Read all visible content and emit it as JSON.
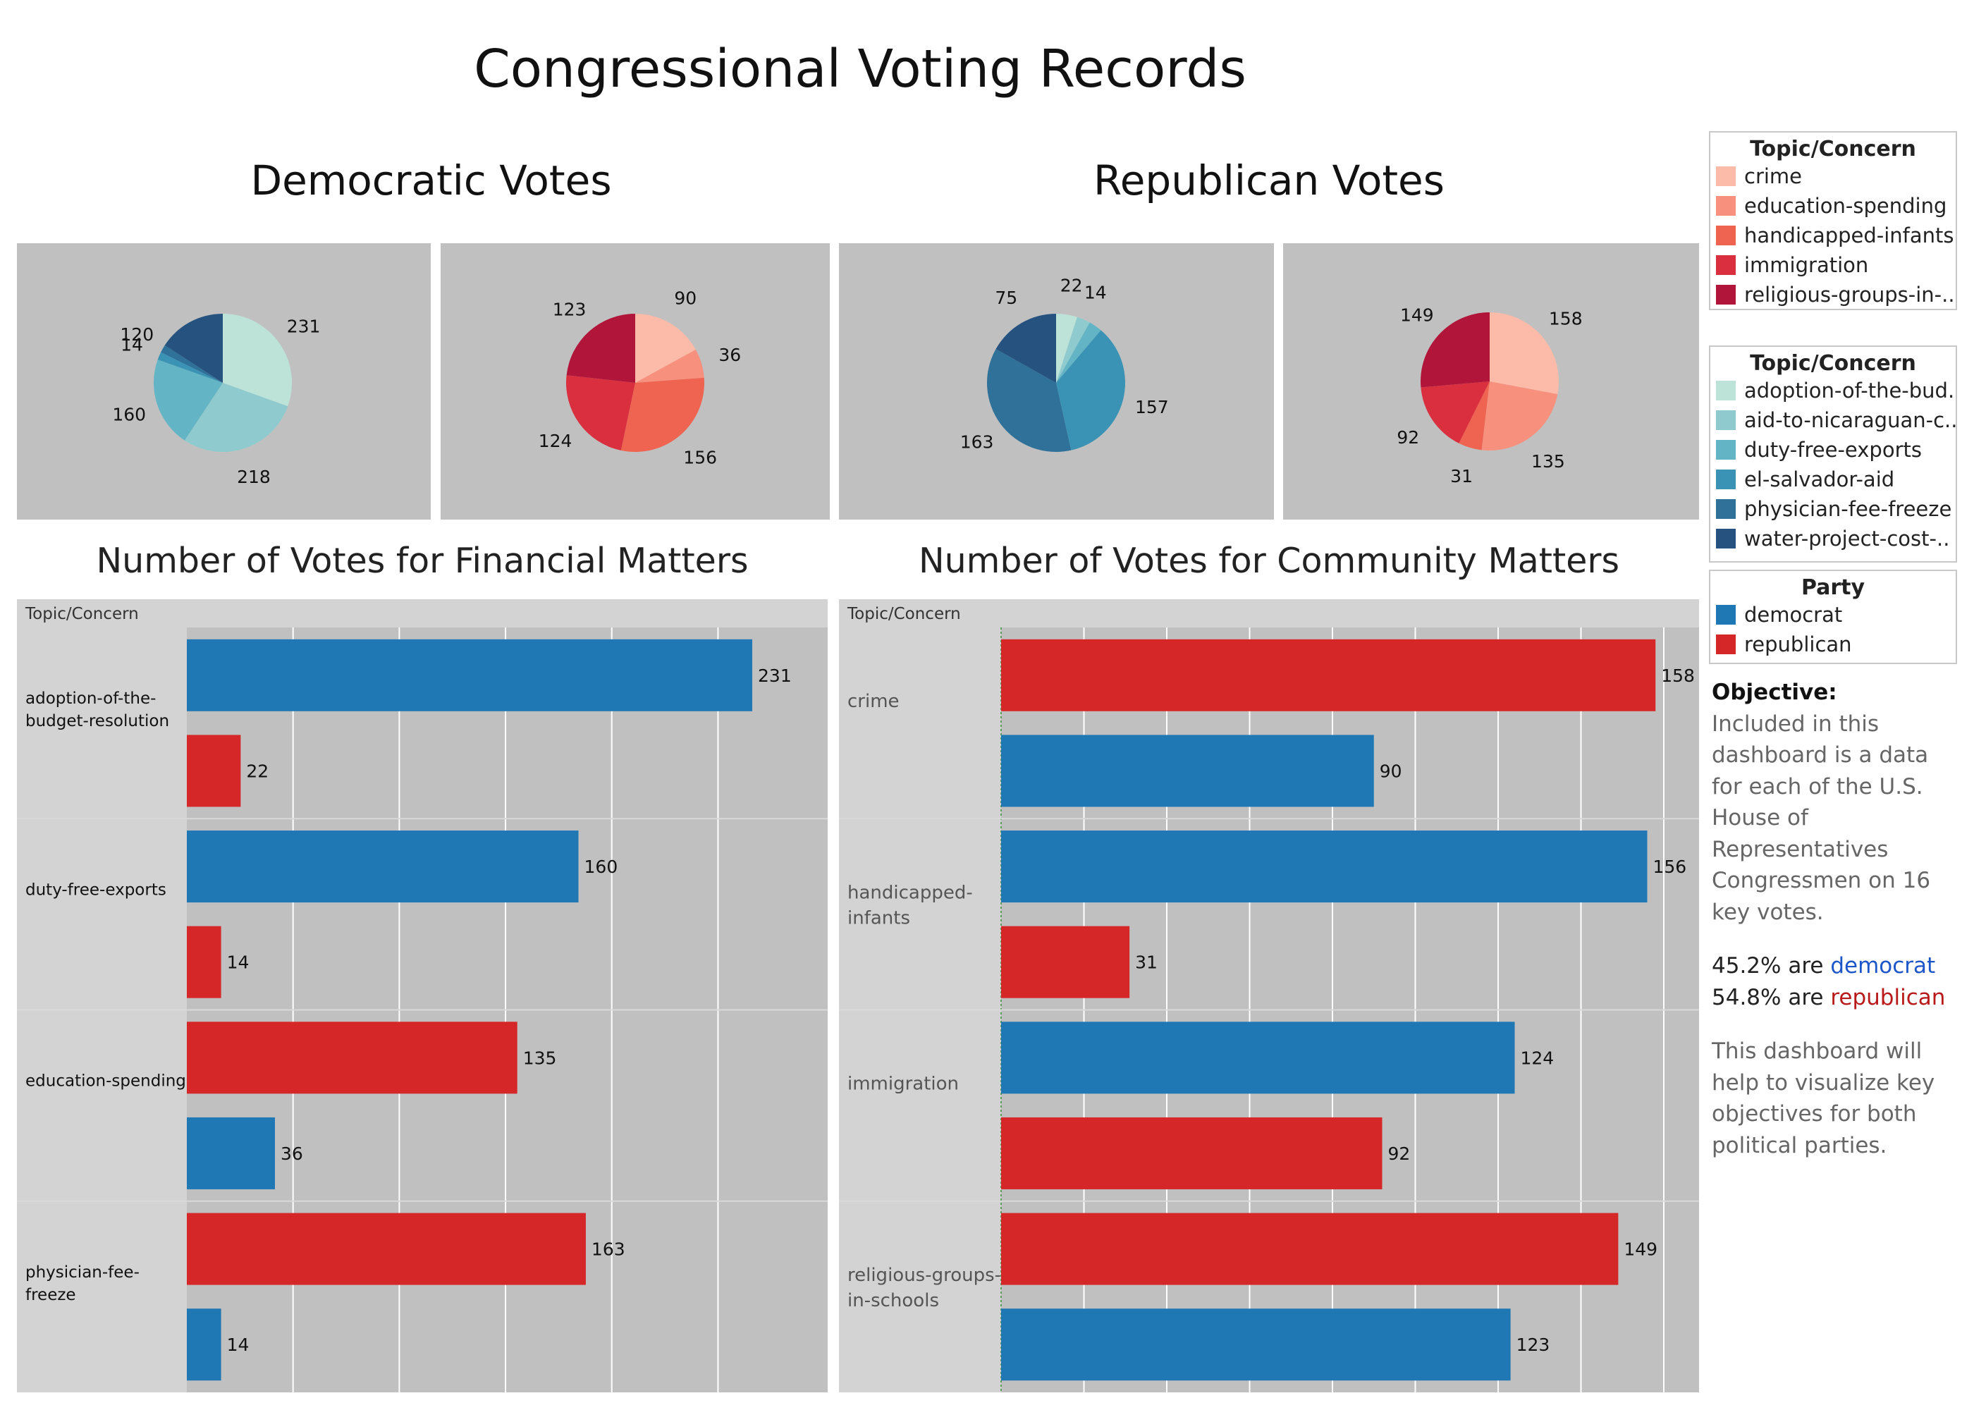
{
  "dashboard": {
    "title": "Congressional Voting Records",
    "democratic_title": "Democratic Votes",
    "republican_title": "Republican Votes",
    "financial_title": "Number of Votes for Financial Matters",
    "community_title": "Number of Votes for Community Matters"
  },
  "colors": {
    "democrat": "#1f77b4",
    "republican": "#d62728",
    "panel_bg": "#c0c0c0",
    "header_bg": "#d3d3d3"
  },
  "legends": {
    "community": {
      "title": "Topic/Concern",
      "items": [
        {
          "label": "crime",
          "color": "#fcbaa9"
        },
        {
          "label": "education-spending",
          "color": "#f7917d"
        },
        {
          "label": "handicapped-infants",
          "color": "#ef6351"
        },
        {
          "label": "immigration",
          "color": "#d92f3e"
        },
        {
          "label": "religious-groups-in-..",
          "color": "#b1153a"
        }
      ]
    },
    "financial": {
      "title": "Topic/Concern",
      "items": [
        {
          "label": "adoption-of-the-bud..",
          "color": "#bde3d9"
        },
        {
          "label": "aid-to-nicaraguan-c..",
          "color": "#8fcbce"
        },
        {
          "label": "duty-free-exports",
          "color": "#63b5c5"
        },
        {
          "label": "el-salvador-aid",
          "color": "#3a93b5"
        },
        {
          "label": "physician-fee-freeze",
          "color": "#2f7199"
        },
        {
          "label": "water-project-cost-..",
          "color": "#25527f"
        }
      ]
    },
    "party": {
      "title": "Party",
      "items": [
        {
          "label": "democrat",
          "color": "#1f77b4"
        },
        {
          "label": "republican",
          "color": "#d62728"
        }
      ]
    }
  },
  "objective": {
    "label": "Objective:",
    "description": "Included in this dashboard is a data for each of the U.S. House of Representatives Congressmen on 16 key votes.",
    "democrat_pct": "45.2%",
    "republican_pct": "54.8%",
    "are_text": "are",
    "democrat_word": "democrat",
    "republican_word": "republican",
    "footer": "This dashboard will help to visualize key objectives for both political parties."
  },
  "chart_data": [
    {
      "type": "pie",
      "panel": "democratic-financial",
      "slices": [
        {
          "label": "adoption-of-the-budget-resolution",
          "value": 231,
          "color": "#bde3d9"
        },
        {
          "label": "aid-to-nicaraguan-contras",
          "value": 218,
          "color": "#8fcbce"
        },
        {
          "label": "duty-free-exports",
          "value": 160,
          "color": "#63b5c5"
        },
        {
          "label": "el-salvador-aid",
          "value": 14,
          "color": "#3a93b5"
        },
        {
          "label": "physician-fee-freeze",
          "value": 14,
          "color": "#2f7199"
        },
        {
          "label": "water-project-cost-sharing",
          "value": 120,
          "color": "#25527f"
        }
      ],
      "shown_labels": [
        "231",
        "218",
        "160",
        "14",
        "120"
      ]
    },
    {
      "type": "pie",
      "panel": "democratic-community",
      "slices": [
        {
          "label": "crime",
          "value": 90,
          "color": "#fcbaa9"
        },
        {
          "label": "education-spending",
          "value": 36,
          "color": "#f7917d"
        },
        {
          "label": "handicapped-infants",
          "value": 156,
          "color": "#ef6351"
        },
        {
          "label": "immigration",
          "value": 124,
          "color": "#d92f3e"
        },
        {
          "label": "religious-groups-in-schools",
          "value": 123,
          "color": "#b1153a"
        }
      ],
      "shown_labels": [
        "90",
        "36",
        "156",
        "124",
        "123"
      ]
    },
    {
      "type": "pie",
      "panel": "republican-financial",
      "slices": [
        {
          "label": "adoption-of-the-budget-resolution",
          "value": 22,
          "color": "#bde3d9"
        },
        {
          "label": "aid-to-nicaraguan-contras",
          "value": 14,
          "color": "#8fcbce"
        },
        {
          "label": "duty-free-exports",
          "value": 14,
          "color": "#63b5c5"
        },
        {
          "label": "el-salvador-aid",
          "value": 157,
          "color": "#3a93b5"
        },
        {
          "label": "physician-fee-freeze",
          "value": 163,
          "color": "#2f7199"
        },
        {
          "label": "water-project-cost-sharing",
          "value": 75,
          "color": "#25527f"
        }
      ],
      "shown_labels": [
        "22",
        "14",
        "",
        "157",
        "163",
        "75"
      ]
    },
    {
      "type": "pie",
      "panel": "republican-community",
      "slices": [
        {
          "label": "crime",
          "value": 158,
          "color": "#fcbaa9"
        },
        {
          "label": "education-spending",
          "value": 135,
          "color": "#f7917d"
        },
        {
          "label": "handicapped-infants",
          "value": 31,
          "color": "#ef6351"
        },
        {
          "label": "immigration",
          "value": 92,
          "color": "#d92f3e"
        },
        {
          "label": "religious-groups-in-schools",
          "value": 149,
          "color": "#b1153a"
        }
      ],
      "shown_labels": [
        "158",
        "135",
        "31",
        "92",
        "149"
      ]
    },
    {
      "type": "bar",
      "panel": "financial-matters",
      "header": "Topic/Concern",
      "xlim": [
        0,
        250
      ],
      "categories": [
        {
          "label": "adoption-of-the-budget-resolution",
          "lines": [
            "adoption-of-the-",
            "budget-resolution"
          ],
          "bars": [
            {
              "party": "democrat",
              "value": 231
            },
            {
              "party": "republican",
              "value": 22
            }
          ]
        },
        {
          "label": "duty-free-exports",
          "lines": [
            "duty-free-exports"
          ],
          "bars": [
            {
              "party": "democrat",
              "value": 160
            },
            {
              "party": "republican",
              "value": 14
            }
          ]
        },
        {
          "label": "education-spending",
          "lines": [
            "education-spending"
          ],
          "bars": [
            {
              "party": "republican",
              "value": 135
            },
            {
              "party": "democrat",
              "value": 36
            }
          ]
        },
        {
          "label": "physician-fee-freeze",
          "lines": [
            "physician-fee-",
            "freeze"
          ],
          "bars": [
            {
              "party": "republican",
              "value": 163
            },
            {
              "party": "democrat",
              "value": 14
            }
          ]
        }
      ]
    },
    {
      "type": "bar",
      "panel": "community-matters",
      "header": "Topic/Concern",
      "xlim": [
        0,
        160
      ],
      "categories": [
        {
          "label": "crime",
          "lines": [
            "crime"
          ],
          "bars": [
            {
              "party": "republican",
              "value": 158
            },
            {
              "party": "democrat",
              "value": 90
            }
          ]
        },
        {
          "label": "handicapped-infants",
          "lines": [
            "handicapped-",
            "infants"
          ],
          "bars": [
            {
              "party": "democrat",
              "value": 156
            },
            {
              "party": "republican",
              "value": 31
            }
          ]
        },
        {
          "label": "immigration",
          "lines": [
            "immigration"
          ],
          "bars": [
            {
              "party": "democrat",
              "value": 124
            },
            {
              "party": "republican",
              "value": 92
            }
          ]
        },
        {
          "label": "religious-groups-in-schools",
          "lines": [
            "religious-groups-",
            "in-schools"
          ],
          "bars": [
            {
              "party": "republican",
              "value": 149
            },
            {
              "party": "democrat",
              "value": 123
            }
          ]
        }
      ]
    }
  ]
}
